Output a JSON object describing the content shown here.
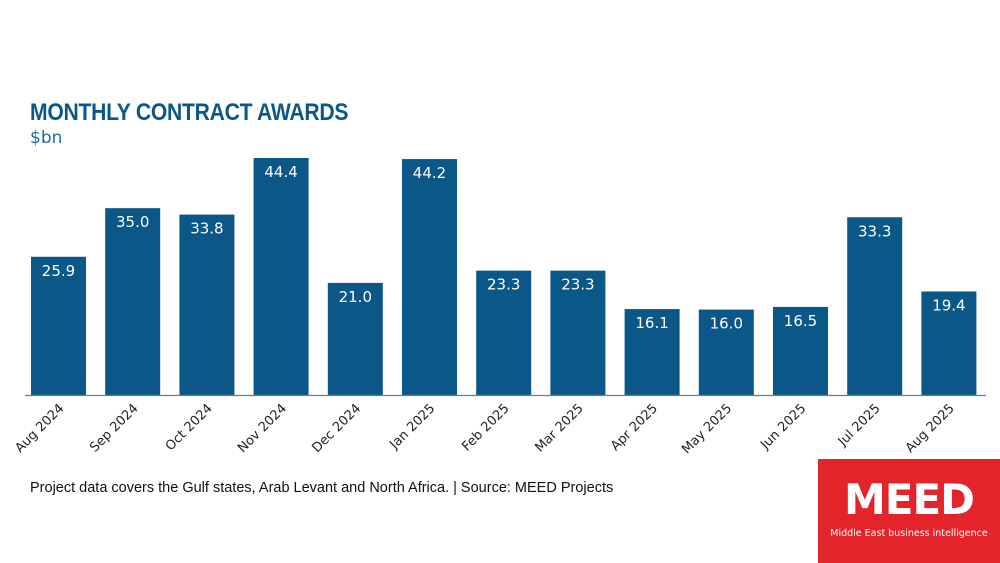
{
  "chart_data": {
    "type": "bar",
    "title": "MONTHLY CONTRACT AWARDS",
    "subtitle": "$bn",
    "xlabel": "",
    "ylabel": "$bn",
    "categories": [
      "Aug 2024",
      "Sep 2024",
      "Oct 2024",
      "Nov 2024",
      "Dec 2024",
      "Jan 2025",
      "Feb 2025",
      "Mar 2025",
      "Apr 2025",
      "May 2025",
      "Jun 2025",
      "Jul 2025",
      "Aug 2025"
    ],
    "values": [
      25.9,
      35.0,
      33.8,
      44.4,
      21.0,
      44.2,
      23.3,
      23.3,
      16.1,
      16.0,
      16.5,
      33.3,
      19.4
    ],
    "data_labels": [
      "25.9",
      "35.0",
      "33.8",
      "44.4",
      "21.0",
      "44.2",
      "23.3",
      "23.3",
      "16.1",
      "16.0",
      "16.5",
      "33.3",
      "19.4"
    ],
    "ylim": [
      0,
      44.4
    ],
    "grid": false,
    "legend": "none",
    "colors": {
      "bar": "#0b5788",
      "label": "#ffffff",
      "axis": "#7a7a7a"
    }
  },
  "footnote": "Project data covers the Gulf states, Arab Levant and North Africa. | Source: MEED Projects",
  "logo": {
    "word": "MEED",
    "tagline": "Middle East business intelligence",
    "color": "#e3242b"
  }
}
